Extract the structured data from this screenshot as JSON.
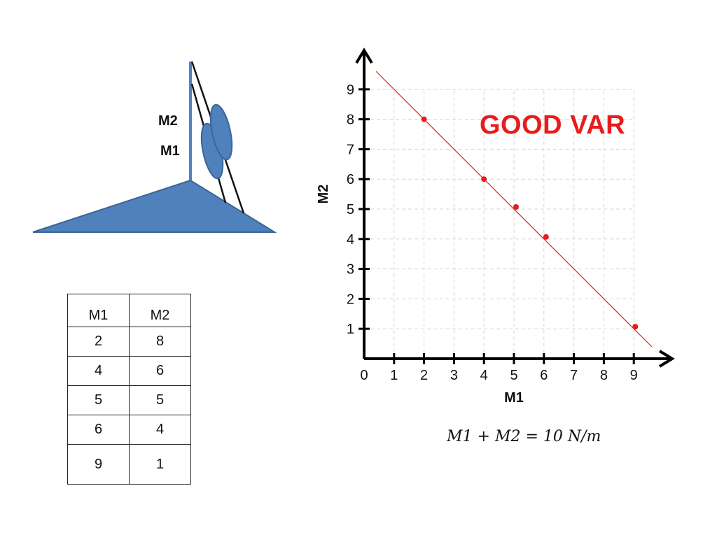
{
  "diagram": {
    "label_m2": "M2",
    "label_m1": "M1",
    "fill_color": "#4f81bd",
    "stroke_color": "#3a6595"
  },
  "table": {
    "headers": [
      "M1",
      "M2"
    ],
    "rows": [
      [
        "2",
        "8"
      ],
      [
        "4",
        "6"
      ],
      [
        "5",
        "5"
      ],
      [
        "6",
        "4"
      ],
      [
        "9",
        "1"
      ]
    ]
  },
  "chart_data": {
    "type": "scatter",
    "xlabel": "M1",
    "ylabel": "M2",
    "xlim": [
      0,
      10
    ],
    "ylim": [
      0,
      10
    ],
    "x_ticks": [
      0,
      1,
      2,
      3,
      4,
      5,
      6,
      7,
      8,
      9
    ],
    "y_ticks": [
      1,
      2,
      3,
      4,
      5,
      6,
      7,
      8,
      9
    ],
    "grid": true,
    "points": [
      {
        "x": 2,
        "y": 8
      },
      {
        "x": 4,
        "y": 6
      },
      {
        "x": 5.07,
        "y": 5.07
      },
      {
        "x": 6.07,
        "y": 4.07
      },
      {
        "x": 9.05,
        "y": 1.07
      }
    ],
    "trend_line": {
      "x": [
        0.4,
        9.6
      ],
      "y": [
        9.6,
        0.4
      ]
    },
    "point_color": "#e81c1c",
    "annotation": "GOOD VAR"
  },
  "equation": "M1 + M2 = 10 N/m"
}
